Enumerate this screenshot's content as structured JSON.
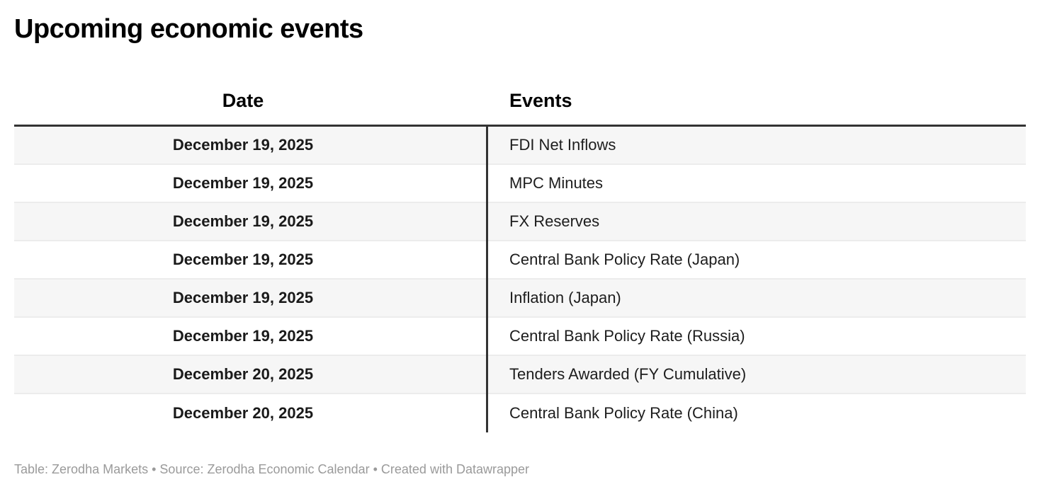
{
  "title": "Upcoming economic events",
  "header": {
    "date": "Date",
    "events": "Events"
  },
  "chart_data": {
    "type": "table",
    "title": "Upcoming economic events",
    "columns": [
      "Date",
      "Events"
    ],
    "rows": [
      [
        "December 19, 2025",
        "FDI Net Inflows"
      ],
      [
        "December 19, 2025",
        "MPC Minutes"
      ],
      [
        "December 19, 2025",
        "FX Reserves"
      ],
      [
        "December 19, 2025",
        "Central Bank Policy Rate (Japan)"
      ],
      [
        "December 19, 2025",
        "Inflation (Japan)"
      ],
      [
        "December 19, 2025",
        "Central Bank Policy Rate (Russia)"
      ],
      [
        "December 20, 2025",
        "Tenders Awarded (FY Cumulative)"
      ],
      [
        "December 20, 2025",
        "Central Bank Policy Rate (China)"
      ]
    ],
    "layout": {
      "date_column_align": "center",
      "events_column_align": "left",
      "row_stripes": true
    }
  },
  "footer": {
    "table_label": "Table: ",
    "table_value": "Zerodha Markets",
    "separator": " • ",
    "source_label": "Source: ",
    "source_value": "Zerodha Economic Calendar",
    "created_label": "Created with ",
    "created_value": "Datawrapper"
  },
  "colors": {
    "title_text": "#000000",
    "body_text": "#1d1d1d",
    "rule_and_divider": "#333333",
    "row_stripe": "#f6f6f6",
    "row_separator": "#ececec",
    "footer_text": "#9a9a9a",
    "background": "#ffffff"
  }
}
